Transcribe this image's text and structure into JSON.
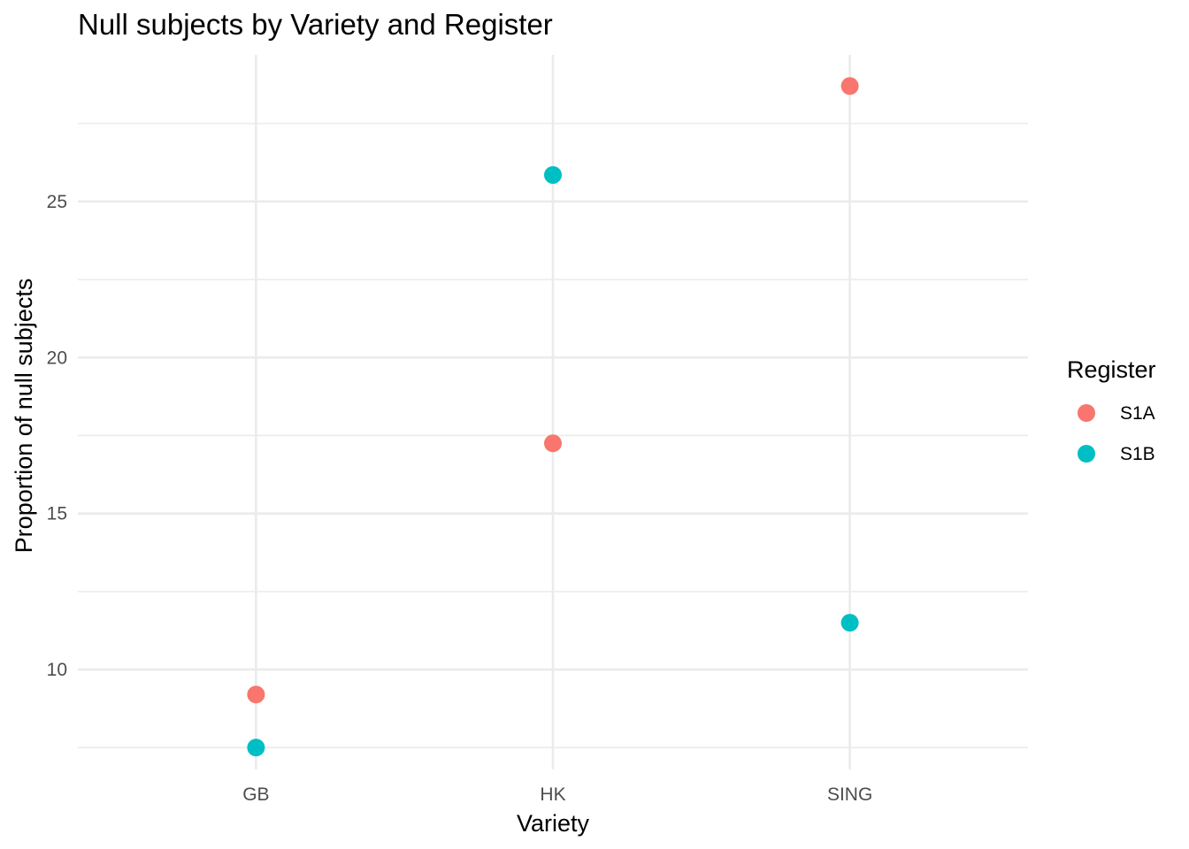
{
  "chart_data": {
    "type": "scatter",
    "title": "Null subjects by Variety and Register",
    "xlabel": "Variety",
    "ylabel": "Proportion of null subjects",
    "categories": [
      "GB",
      "HK",
      "SING"
    ],
    "ylim": [
      6.8,
      29.7
    ],
    "y_major_ticks": [
      10,
      15,
      20,
      25
    ],
    "y_minor_ticks": [
      7.5,
      12.5,
      17.5,
      22.5,
      27.5
    ],
    "grid": true,
    "legend": {
      "title": "Register",
      "position": "right"
    },
    "series": [
      {
        "name": "S1A",
        "color": "#F8766D",
        "values": [
          9.2,
          17.25,
          28.7
        ]
      },
      {
        "name": "S1B",
        "color": "#00BFC4",
        "values": [
          7.5,
          25.85,
          11.5
        ]
      }
    ]
  }
}
